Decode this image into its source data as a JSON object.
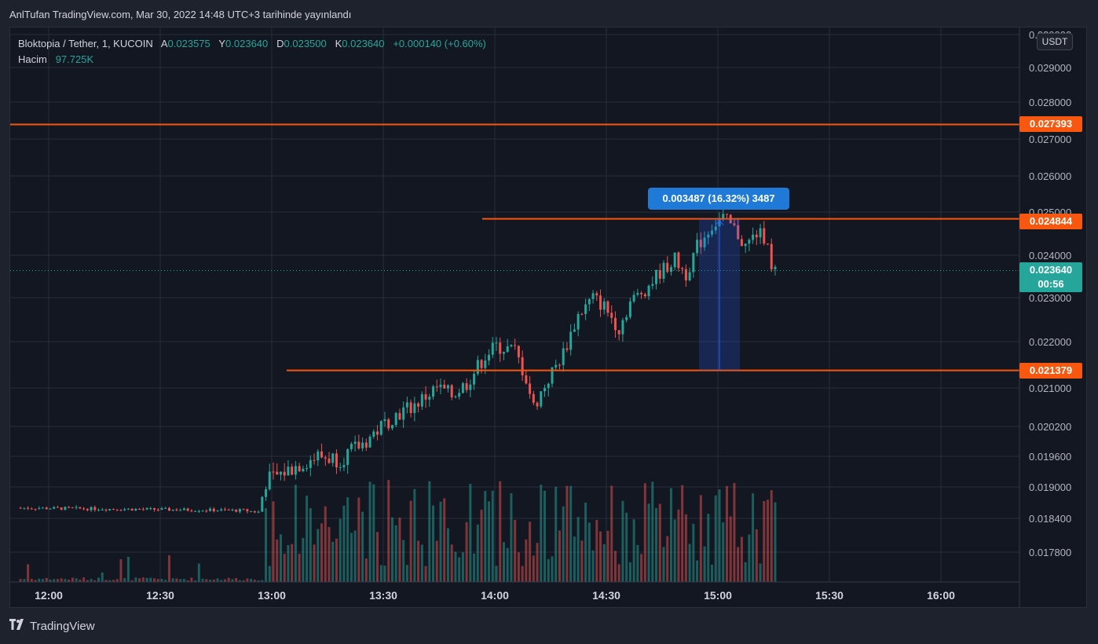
{
  "header": {
    "publish_text": "AnlTufan TradingView.com, Mar 30, 2022 14:48 UTC+3 tarihinde yayınlandı"
  },
  "legend": {
    "symbol": "Bloktopia / Tether, 1, KUCOIN",
    "open_label": "A",
    "open": "0.023575",
    "high_label": "Y",
    "high": "0.023640",
    "low_label": "D",
    "low": "0.023500",
    "close_label": "K",
    "close": "0.023640",
    "change": "+0.000140 (+0.60%)",
    "volume_label": "Hacim",
    "volume": "97.725K"
  },
  "axis": {
    "currency": "USDT",
    "y_ticks": [
      "0.030000",
      "0.029000",
      "0.028000",
      "0.027000",
      "0.026000",
      "0.025000",
      "0.024000",
      "0.023000",
      "0.022000",
      "0.021000",
      "0.020200",
      "0.019600",
      "0.019000",
      "0.018400",
      "0.017800"
    ],
    "x_ticks": [
      "12:00",
      "12:30",
      "13:00",
      "13:30",
      "14:00",
      "14:30",
      "15:00",
      "15:30",
      "16:00"
    ]
  },
  "levels": {
    "resistance_top": "0.027393",
    "resistance_mid": "0.024844",
    "support": "0.021379",
    "current_price": "0.023640",
    "countdown": "00:56"
  },
  "measure": {
    "label": "0.003487 (16.32%) 3487"
  },
  "footer": {
    "brand": "TradingView"
  },
  "colors": {
    "up": "#26a69a",
    "down": "#ef5350",
    "level": "#f7570e",
    "measure": "#1e7ad6",
    "background": "#131722"
  },
  "chart_data": {
    "type": "candlestick",
    "symbol": "Bloktopia / Tether",
    "interval": "1",
    "exchange": "KUCOIN",
    "price_scale": "segmented (compressed below 0.021000)",
    "candles_approx": [
      {
        "time": "11:54",
        "open": 0.0186,
        "high": 0.01864,
        "low": 0.01852,
        "close": 0.01858
      },
      {
        "time": "12:30",
        "open": 0.01856,
        "high": 0.01862,
        "low": 0.0185,
        "close": 0.01854
      },
      {
        "time": "12:58",
        "open": 0.01848,
        "high": 0.01855,
        "low": 0.01845,
        "close": 0.01852
      },
      {
        "time": "13:00",
        "open": 0.01852,
        "high": 0.0192,
        "low": 0.0185,
        "close": 0.01905
      },
      {
        "time": "13:15",
        "open": 0.0196,
        "high": 0.01975,
        "low": 0.0195,
        "close": 0.01958
      },
      {
        "time": "13:30",
        "open": 0.0201,
        "high": 0.0203,
        "low": 0.02,
        "close": 0.0202
      },
      {
        "time": "13:45",
        "open": 0.0208,
        "high": 0.0212,
        "low": 0.02075,
        "close": 0.0211
      },
      {
        "time": "13:53",
        "open": 0.0218,
        "high": 0.022,
        "low": 0.0217,
        "close": 0.0219
      },
      {
        "time": "14:02",
        "open": 0.0211,
        "high": 0.0212,
        "low": 0.0206,
        "close": 0.0207
      },
      {
        "time": "14:10",
        "open": 0.0215,
        "high": 0.0219,
        "low": 0.0214,
        "close": 0.0218
      },
      {
        "time": "14:15",
        "open": 0.0228,
        "high": 0.0231,
        "low": 0.0227,
        "close": 0.023
      },
      {
        "time": "14:20",
        "open": 0.0226,
        "high": 0.0227,
        "low": 0.02215,
        "close": 0.02225
      },
      {
        "time": "14:35",
        "open": 0.024,
        "high": 0.0244,
        "low": 0.0239,
        "close": 0.0243
      },
      {
        "time": "14:40",
        "open": 0.0247,
        "high": 0.0249,
        "low": 0.0246,
        "close": 0.0248
      },
      {
        "time": "14:47",
        "open": 0.0244,
        "high": 0.0245,
        "low": 0.0235,
        "close": 0.02358
      },
      {
        "time": "14:48",
        "open": 0.023575,
        "high": 0.02364,
        "low": 0.0235,
        "close": 0.02364
      }
    ]
  }
}
